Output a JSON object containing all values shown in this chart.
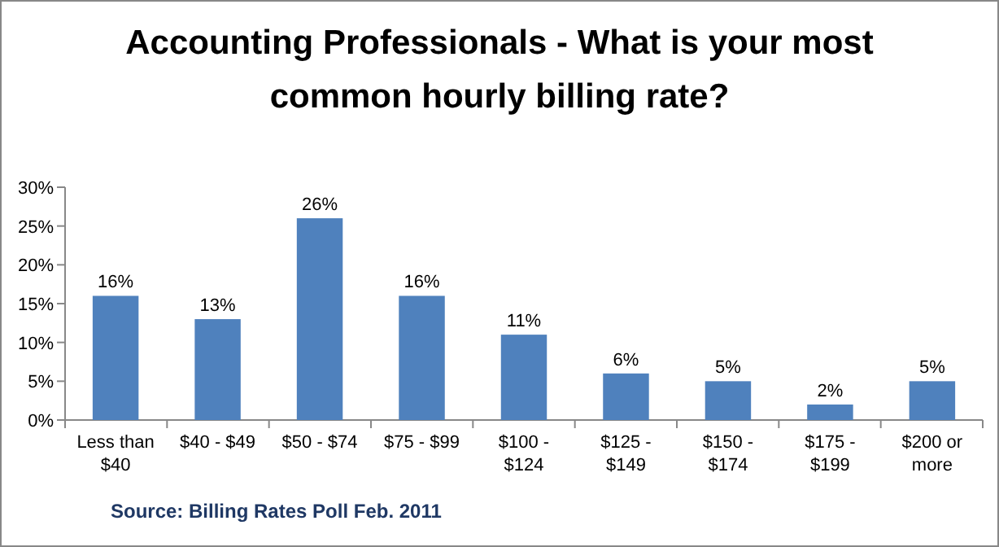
{
  "chart_data": {
    "type": "bar",
    "title": "Accounting Professionals - What is your most common hourly billing rate?",
    "categories": [
      "Less than $40",
      "$40 - $49",
      "$50 - $74",
      "$75 - $99",
      "$100 - $124",
      "$125 - $149",
      "$150 - $174",
      "$175 - $199",
      "$200 or more"
    ],
    "values": [
      16,
      13,
      26,
      16,
      11,
      6,
      5,
      2,
      5
    ],
    "value_labels": [
      "16%",
      "13%",
      "26%",
      "16%",
      "11%",
      "6%",
      "5%",
      "2%",
      "5%"
    ],
    "color": "#4f81bd",
    "ylim": [
      0,
      30
    ],
    "yticks": [
      {
        "value": 0,
        "label": "0%"
      },
      {
        "value": 5,
        "label": "5%"
      },
      {
        "value": 10,
        "label": "10%"
      },
      {
        "value": 15,
        "label": "15%"
      },
      {
        "value": 20,
        "label": "20%"
      },
      {
        "value": 25,
        "label": "25%"
      },
      {
        "value": 30,
        "label": "30%"
      }
    ],
    "annotations": [
      "Source:  Billing Rates Poll Feb. 2011"
    ]
  }
}
